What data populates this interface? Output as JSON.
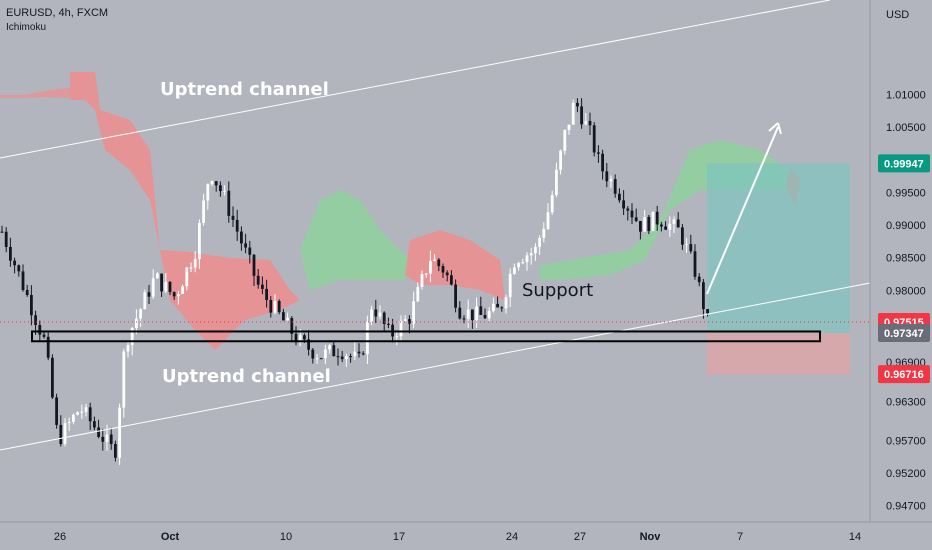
{
  "header": {
    "symbol_line": "EURUSD, 4h, FXCM",
    "indicator": "Ichimoku",
    "currency": "USD"
  },
  "chart_data": {
    "type": "candlestick",
    "symbol": "EURUSD",
    "timeframe": "4h",
    "price_axis": {
      "ylim": [
        0.9445,
        1.0245
      ],
      "ticks": [
        "1.01000",
        "1.00500",
        "0.99500",
        "0.99000",
        "0.98500",
        "0.98000",
        "0.96900",
        "0.96300",
        "0.95700",
        "0.95200",
        "0.94700"
      ]
    },
    "time_axis": {
      "ticks": [
        "26",
        "Oct",
        "10",
        "17",
        "24",
        "27",
        "Nov",
        "7",
        "14"
      ]
    },
    "price_badges": [
      {
        "value": "0.99947",
        "color": "#089981"
      },
      {
        "value": "0.97515",
        "color": "#f23645"
      },
      {
        "value": "0.97347",
        "color": "#6a6d78"
      },
      {
        "value": "0.96716",
        "color": "#f23645"
      }
    ],
    "annotations": [
      "Uptrend channel",
      "Uptrend channel",
      "Support"
    ],
    "key_levels": {
      "current_price": 0.97515,
      "support_zone": [
        0.9722,
        0.9737
      ],
      "take_profit": 0.99947,
      "entry": 0.97347,
      "stop_loss": 0.96716
    },
    "colors": {
      "background": "#b2b5be",
      "up_candle": "#ffffff",
      "down_candle": "#131722",
      "cloud_bull": "#8fd19e",
      "cloud_bear": "#f28b8b",
      "profit_zone": "#7fc5c0",
      "loss_zone": "#e7a3a3"
    }
  }
}
